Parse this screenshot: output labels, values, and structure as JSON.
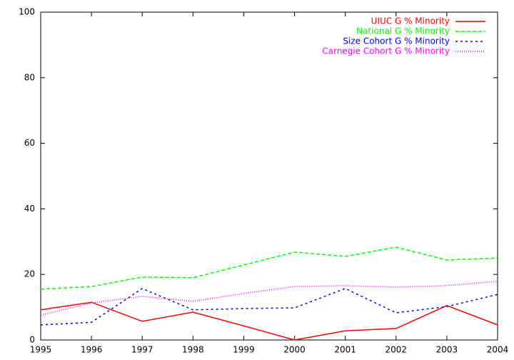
{
  "chart_data": {
    "type": "line",
    "x": [
      1995,
      1996,
      1997,
      1998,
      1999,
      2000,
      2001,
      2002,
      2003,
      2004
    ],
    "series": [
      {
        "name": "UIUC G % Minority",
        "color": "#ff0000",
        "values": [
          9.2,
          11.5,
          5.7,
          8.5,
          4.3,
          0,
          2.8,
          3.5,
          10.5,
          4.6
        ]
      },
      {
        "name": "National G % Minority",
        "color": "#00ff00",
        "values": [
          15.5,
          16.3,
          19.2,
          19.0,
          22.9,
          26.8,
          25.5,
          28.3,
          24.4,
          25.0
        ]
      },
      {
        "name": "Size Cohort G % Minority",
        "color": "#0000ff",
        "values": [
          4.6,
          5.4,
          15.7,
          9.2,
          9.6,
          9.8,
          15.7,
          8.3,
          10.2,
          13.9
        ]
      },
      {
        "name": "Carnegie Cohort G % Minority",
        "color": "#ff00ff",
        "values": [
          7.6,
          11.3,
          13.3,
          11.8,
          14.2,
          16.3,
          16.6,
          16.1,
          16.6,
          17.9
        ]
      }
    ],
    "xlim": [
      1995,
      2004
    ],
    "xticks": [
      1995,
      1996,
      1997,
      1998,
      1999,
      2000,
      2001,
      2002,
      2003,
      2004
    ],
    "ylim": [
      0,
      100
    ],
    "yticks": [
      0,
      20,
      40,
      60,
      80,
      100
    ],
    "grid": false,
    "legend": "top-right"
  }
}
